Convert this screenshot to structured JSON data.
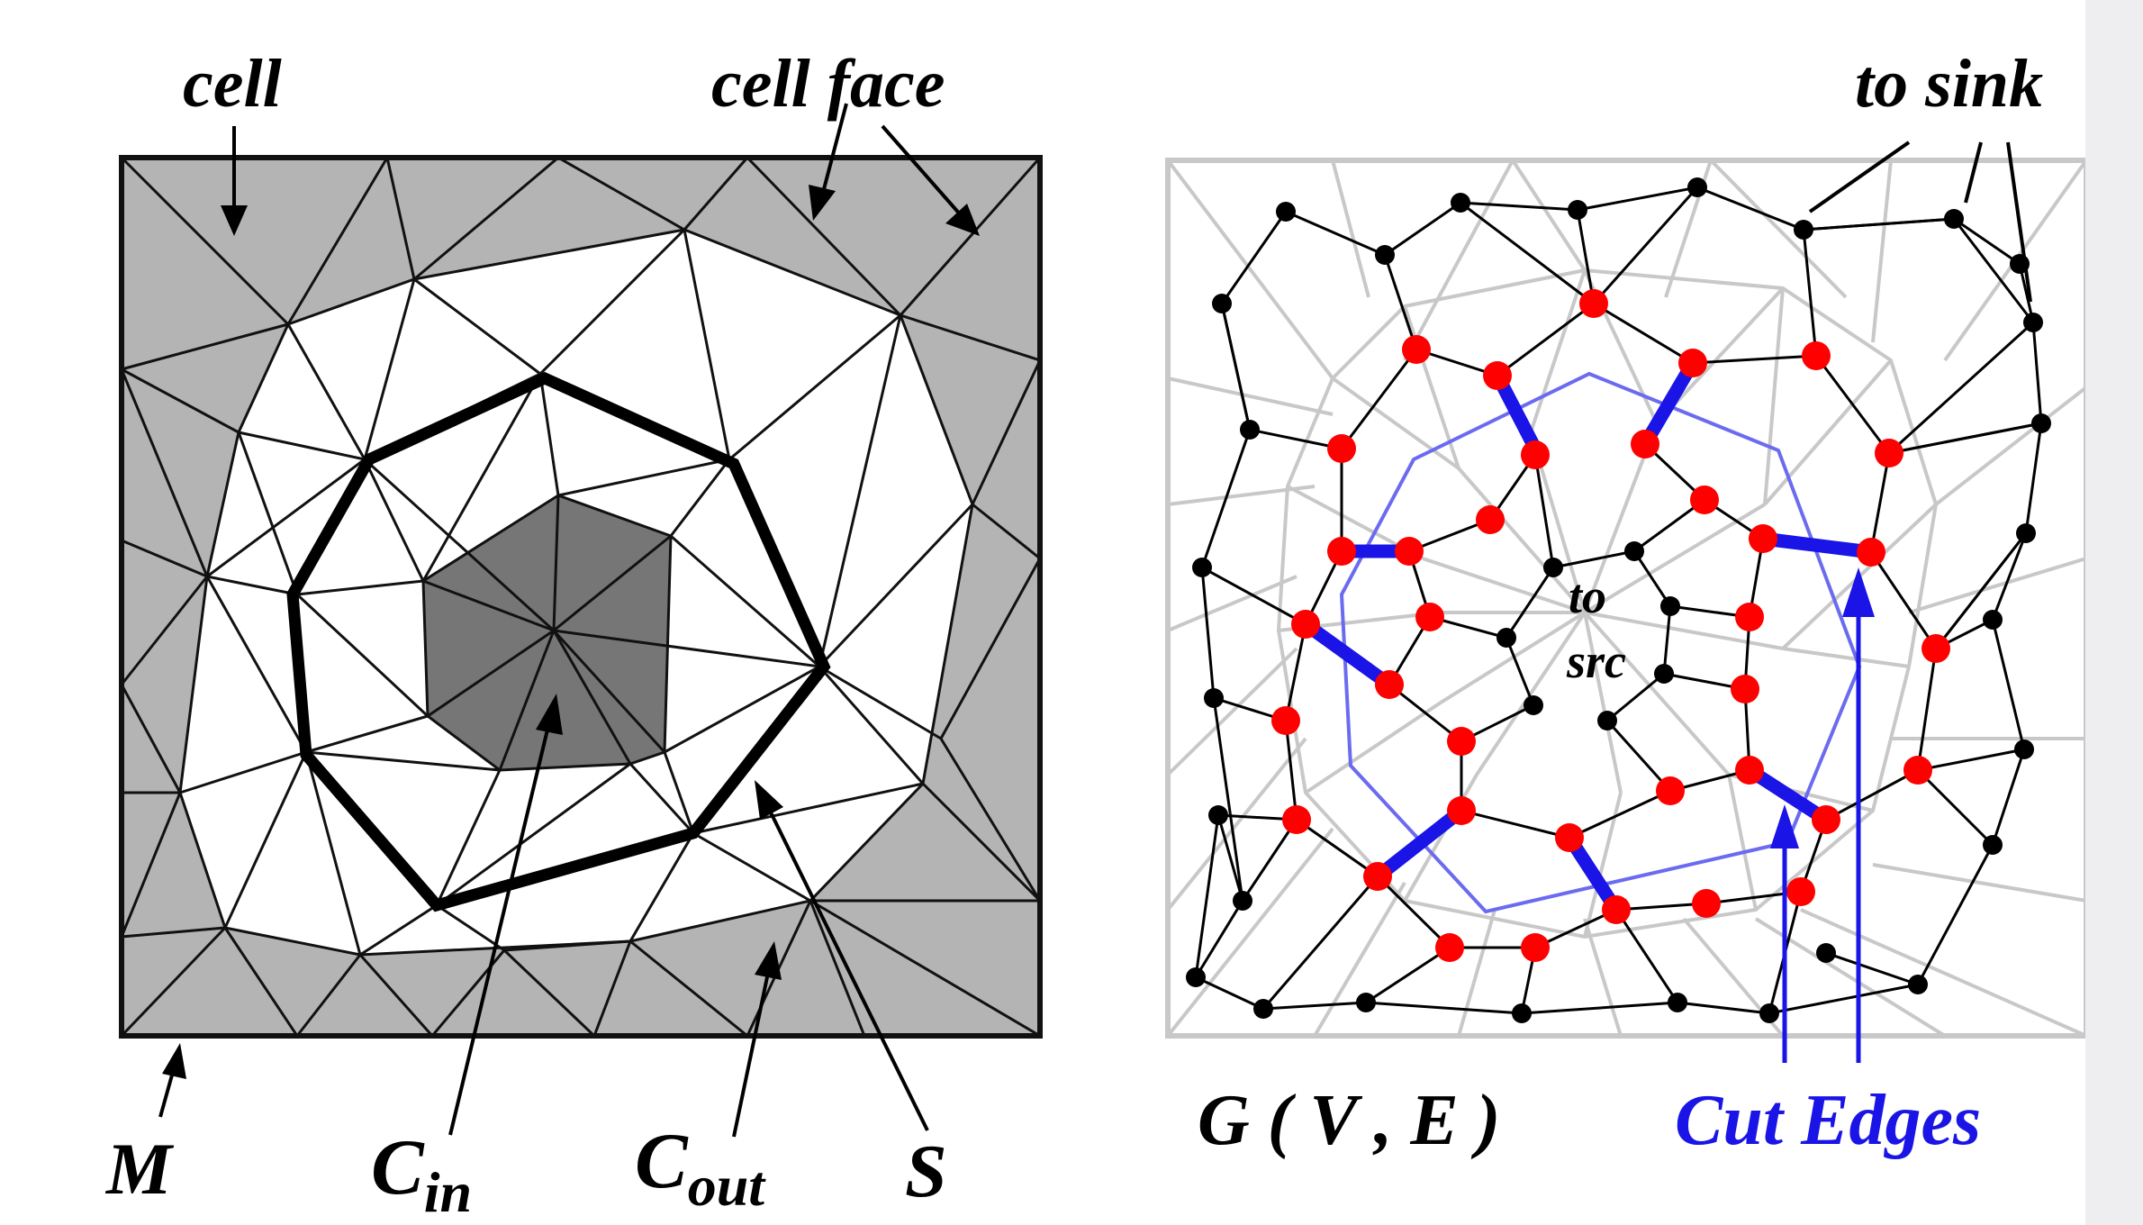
{
  "left_panel": {
    "labels": {
      "cell": "cell",
      "cell_face": "cell face",
      "m": "M",
      "c_in_main": "C",
      "c_in_sub": "in",
      "c_out_main": "C",
      "c_out_sub": "out",
      "s": "S"
    }
  },
  "right_panel": {
    "labels": {
      "to_sink": "to sink",
      "to": "to",
      "src": "src",
      "graph": "G ( V , E )",
      "cut_edges": "Cut Edges"
    }
  },
  "colors": {
    "outer_gray": "#b4b4b4",
    "inner_dark": "#767676",
    "red_node": "#ff0000",
    "cut_edge": "#1a14e6",
    "light_cut_line": "#6b6bf0",
    "mesh_light": "#c8c8c8",
    "sidebar": "#eeeef0"
  }
}
